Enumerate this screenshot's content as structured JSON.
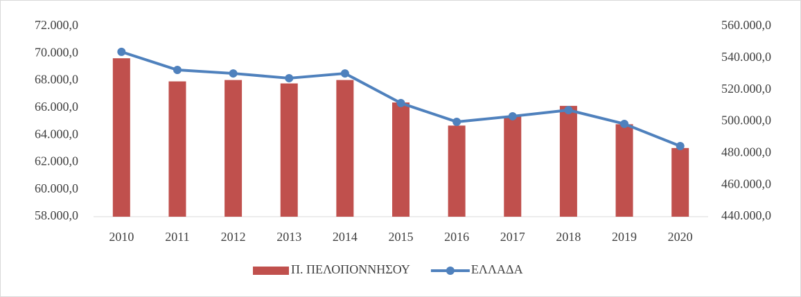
{
  "chart_data": {
    "type": "bar_line",
    "categories": [
      "2010",
      "2011",
      "2012",
      "2013",
      "2014",
      "2015",
      "2016",
      "2017",
      "2018",
      "2019",
      "2020"
    ],
    "series": [
      {
        "name": "Π. ΠΕΛΟΠΟΝΝΗΣΟΥ",
        "type": "bar",
        "axis": "y",
        "color": "#c0504d",
        "values": [
          69650,
          67950,
          68050,
          67800,
          68050,
          66400,
          64700,
          65400,
          66150,
          64800,
          63050
        ]
      },
      {
        "name": "ΕΛΛΑΔΑ",
        "type": "line",
        "axis": "y2",
        "color": "#4f81bd",
        "values": [
          543900,
          532500,
          530300,
          527300,
          530300,
          511600,
          499800,
          503300,
          507200,
          498500,
          484500
        ]
      }
    ],
    "ylim": [
      58000,
      72000
    ],
    "yticks": [
      {
        "value": 58000,
        "label": "58.000,0"
      },
      {
        "value": 60000,
        "label": "60.000,0"
      },
      {
        "value": 62000,
        "label": "62.000,0"
      },
      {
        "value": 64000,
        "label": "64.000,0"
      },
      {
        "value": 66000,
        "label": "66.000,0"
      },
      {
        "value": 68000,
        "label": "68.000,0"
      },
      {
        "value": 70000,
        "label": "70.000,0"
      },
      {
        "value": 72000,
        "label": "72.000,0"
      }
    ],
    "y2lim": [
      440000,
      560000
    ],
    "y2ticks": [
      {
        "value": 440000,
        "label": "440.000,0"
      },
      {
        "value": 460000,
        "label": "460.000,0"
      },
      {
        "value": 480000,
        "label": "480.000,0"
      },
      {
        "value": 500000,
        "label": "500.000,0"
      },
      {
        "value": 520000,
        "label": "520.000,0"
      },
      {
        "value": 540000,
        "label": "540.000,0"
      },
      {
        "value": 560000,
        "label": "560.000,0"
      }
    ],
    "grid": false,
    "legend": "bottom"
  }
}
